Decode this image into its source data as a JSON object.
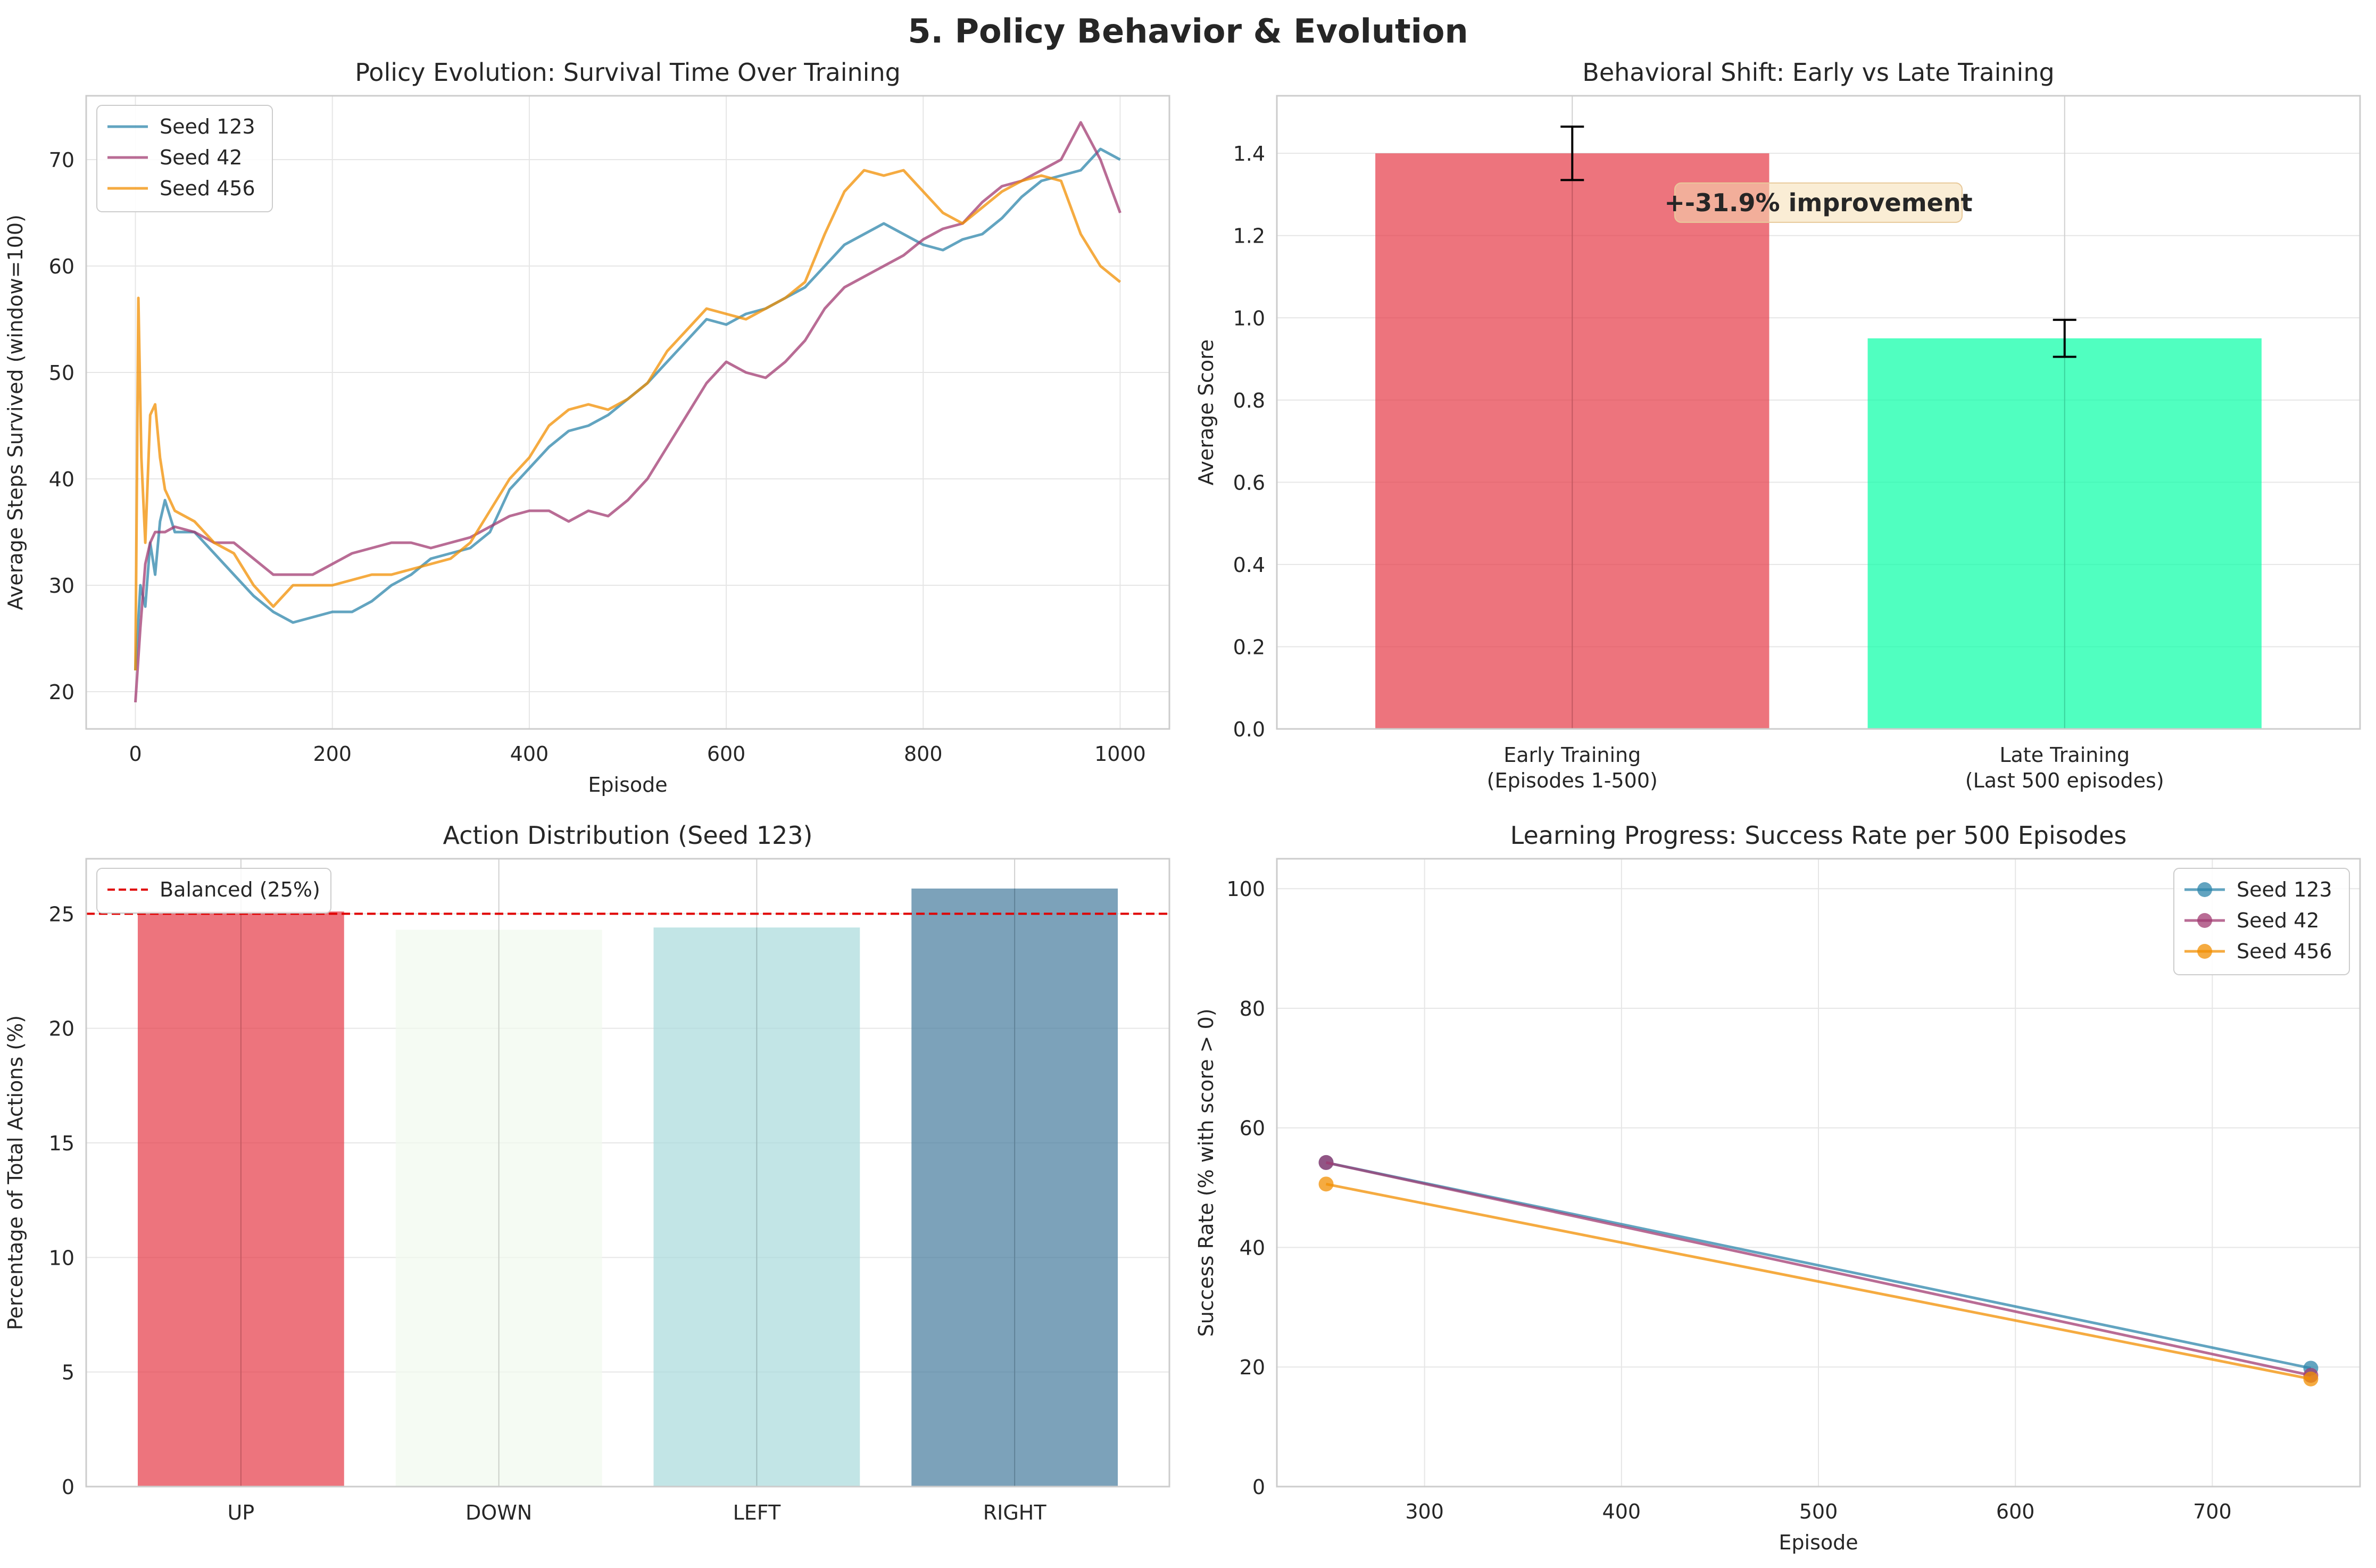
{
  "figure": {
    "title": "5. Policy Behavior & Evolution"
  },
  "chart_data": [
    {
      "id": "survival",
      "type": "line",
      "title": "Policy Evolution: Survival Time Over Training",
      "xlabel": "Episode",
      "ylabel": "Average Steps Survived (window=100)",
      "xlim": [
        -50,
        1050
      ],
      "ylim": [
        16.5,
        76
      ],
      "xticks": [
        0,
        200,
        400,
        600,
        800,
        1000
      ],
      "yticks": [
        20,
        30,
        40,
        50,
        60,
        70
      ],
      "grid": true,
      "legend": "top-left",
      "series": [
        {
          "name": "Seed 123",
          "color": "#2E86AB",
          "points": [
            [
              0,
              22
            ],
            [
              5,
              30
            ],
            [
              10,
              28
            ],
            [
              15,
              34
            ],
            [
              20,
              31
            ],
            [
              25,
              36
            ],
            [
              30,
              38
            ],
            [
              40,
              35
            ],
            [
              60,
              35
            ],
            [
              80,
              33
            ],
            [
              100,
              31
            ],
            [
              120,
              29
            ],
            [
              140,
              27.5
            ],
            [
              160,
              26.5
            ],
            [
              180,
              27
            ],
            [
              200,
              27.5
            ],
            [
              220,
              27.5
            ],
            [
              240,
              28.5
            ],
            [
              260,
              30
            ],
            [
              280,
              31
            ],
            [
              300,
              32.5
            ],
            [
              320,
              33
            ],
            [
              340,
              33.5
            ],
            [
              360,
              35
            ],
            [
              380,
              39
            ],
            [
              400,
              41
            ],
            [
              420,
              43
            ],
            [
              440,
              44.5
            ],
            [
              460,
              45
            ],
            [
              480,
              46
            ],
            [
              500,
              47.5
            ],
            [
              520,
              49
            ],
            [
              540,
              51
            ],
            [
              560,
              53
            ],
            [
              580,
              55
            ],
            [
              600,
              54.5
            ],
            [
              620,
              55.5
            ],
            [
              640,
              56
            ],
            [
              660,
              57
            ],
            [
              680,
              58
            ],
            [
              700,
              60
            ],
            [
              720,
              62
            ],
            [
              740,
              63
            ],
            [
              760,
              64
            ],
            [
              780,
              63
            ],
            [
              800,
              62
            ],
            [
              820,
              61.5
            ],
            [
              840,
              62.5
            ],
            [
              860,
              63
            ],
            [
              880,
              64.5
            ],
            [
              900,
              66.5
            ],
            [
              920,
              68
            ],
            [
              940,
              68.5
            ],
            [
              960,
              69
            ],
            [
              980,
              71
            ],
            [
              1000,
              70
            ]
          ]
        },
        {
          "name": "Seed 42",
          "color": "#A23B72",
          "points": [
            [
              0,
              19
            ],
            [
              5,
              26
            ],
            [
              10,
              32
            ],
            [
              15,
              34
            ],
            [
              20,
              35
            ],
            [
              30,
              35
            ],
            [
              40,
              35.5
            ],
            [
              60,
              35
            ],
            [
              80,
              34
            ],
            [
              100,
              34
            ],
            [
              120,
              32.5
            ],
            [
              140,
              31
            ],
            [
              160,
              31
            ],
            [
              180,
              31
            ],
            [
              200,
              32
            ],
            [
              220,
              33
            ],
            [
              240,
              33.5
            ],
            [
              260,
              34
            ],
            [
              280,
              34
            ],
            [
              300,
              33.5
            ],
            [
              320,
              34
            ],
            [
              340,
              34.5
            ],
            [
              360,
              35.5
            ],
            [
              380,
              36.5
            ],
            [
              400,
              37
            ],
            [
              420,
              37
            ],
            [
              440,
              36
            ],
            [
              460,
              37
            ],
            [
              480,
              36.5
            ],
            [
              500,
              38
            ],
            [
              520,
              40
            ],
            [
              540,
              43
            ],
            [
              560,
              46
            ],
            [
              580,
              49
            ],
            [
              600,
              51
            ],
            [
              620,
              50
            ],
            [
              640,
              49.5
            ],
            [
              660,
              51
            ],
            [
              680,
              53
            ],
            [
              700,
              56
            ],
            [
              720,
              58
            ],
            [
              740,
              59
            ],
            [
              760,
              60
            ],
            [
              780,
              61
            ],
            [
              800,
              62.5
            ],
            [
              820,
              63.5
            ],
            [
              840,
              64
            ],
            [
              860,
              66
            ],
            [
              880,
              67.5
            ],
            [
              900,
              68
            ],
            [
              920,
              69
            ],
            [
              940,
              70
            ],
            [
              960,
              73.5
            ],
            [
              980,
              70
            ],
            [
              1000,
              65
            ]
          ]
        },
        {
          "name": "Seed 456",
          "color": "#F18F01",
          "points": [
            [
              0,
              22
            ],
            [
              3,
              57
            ],
            [
              6,
              42
            ],
            [
              10,
              34
            ],
            [
              15,
              46
            ],
            [
              20,
              47
            ],
            [
              25,
              42
            ],
            [
              30,
              39
            ],
            [
              40,
              37
            ],
            [
              60,
              36
            ],
            [
              80,
              34
            ],
            [
              100,
              33
            ],
            [
              120,
              30
            ],
            [
              140,
              28
            ],
            [
              160,
              30
            ],
            [
              180,
              30
            ],
            [
              200,
              30
            ],
            [
              220,
              30.5
            ],
            [
              240,
              31
            ],
            [
              260,
              31
            ],
            [
              280,
              31.5
            ],
            [
              300,
              32
            ],
            [
              320,
              32.5
            ],
            [
              340,
              34
            ],
            [
              360,
              37
            ],
            [
              380,
              40
            ],
            [
              400,
              42
            ],
            [
              420,
              45
            ],
            [
              440,
              46.5
            ],
            [
              460,
              47
            ],
            [
              480,
              46.5
            ],
            [
              500,
              47.5
            ],
            [
              520,
              49
            ],
            [
              540,
              52
            ],
            [
              560,
              54
            ],
            [
              580,
              56
            ],
            [
              600,
              55.5
            ],
            [
              620,
              55
            ],
            [
              640,
              56
            ],
            [
              660,
              57
            ],
            [
              680,
              58.5
            ],
            [
              700,
              63
            ],
            [
              720,
              67
            ],
            [
              740,
              69
            ],
            [
              760,
              68.5
            ],
            [
              780,
              69
            ],
            [
              800,
              67
            ],
            [
              820,
              65
            ],
            [
              840,
              64
            ],
            [
              860,
              65.5
            ],
            [
              880,
              67
            ],
            [
              900,
              68
            ],
            [
              920,
              68.5
            ],
            [
              940,
              68
            ],
            [
              960,
              63
            ],
            [
              980,
              60
            ],
            [
              1000,
              58.5
            ]
          ]
        }
      ]
    },
    {
      "id": "behavior",
      "type": "bar",
      "title": "Behavioral Shift: Early vs Late Training",
      "ylabel": "Average Score",
      "ylim": [
        0,
        1.54
      ],
      "yticks": [
        0,
        0.2,
        0.4,
        0.6,
        0.8,
        1.0,
        1.2,
        1.4
      ],
      "ytick_labels": [
        "0.0",
        "0.2",
        "0.4",
        "0.6",
        "0.8",
        "1.0",
        "1.2",
        "1.4"
      ],
      "grid": true,
      "categories": [
        "Early Training\n(Episodes 1-500)",
        "Late Training\n(Last 500 episodes)"
      ],
      "values": [
        1.4,
        0.95
      ],
      "errors": [
        0.065,
        0.045
      ],
      "colors": [
        "#E63946",
        "#06FFA5"
      ],
      "annotation": "+-31.9% improvement"
    },
    {
      "id": "actions",
      "type": "bar",
      "title": "Action Distribution (Seed 123)",
      "ylabel": "Percentage of Total Actions (%)",
      "ylim": [
        0,
        27.4
      ],
      "yticks": [
        0,
        5,
        10,
        15,
        20,
        25
      ],
      "grid": true,
      "legend": "top-left",
      "categories": [
        "UP",
        "DOWN",
        "LEFT",
        "RIGHT"
      ],
      "values": [
        25.1,
        24.3,
        24.4,
        26.1
      ],
      "colors": [
        "#E63946",
        "#F1FAEE",
        "#A8DADC",
        "#457B9D"
      ],
      "reference_line": {
        "value": 25,
        "label": "Balanced (25%)",
        "color": "#E00000"
      }
    },
    {
      "id": "success",
      "type": "line",
      "title": "Learning Progress: Success Rate per 500 Episodes",
      "xlabel": "Episode",
      "ylabel": "Success Rate (% with score > 0)",
      "xlim": [
        225,
        775
      ],
      "ylim": [
        0,
        105
      ],
      "xticks": [
        300,
        400,
        500,
        600,
        700
      ],
      "yticks": [
        0,
        20,
        40,
        60,
        80,
        100
      ],
      "grid": true,
      "legend": "top-right",
      "series": [
        {
          "name": "Seed 123",
          "color": "#2E86AB",
          "points": [
            [
              250,
              54.2
            ],
            [
              750,
              19.8
            ]
          ]
        },
        {
          "name": "Seed 42",
          "color": "#A23B72",
          "points": [
            [
              250,
              54.2
            ],
            [
              750,
              18.6
            ]
          ]
        },
        {
          "name": "Seed 456",
          "color": "#F18F01",
          "points": [
            [
              250,
              50.6
            ],
            [
              750,
              18.0
            ]
          ]
        }
      ]
    }
  ]
}
